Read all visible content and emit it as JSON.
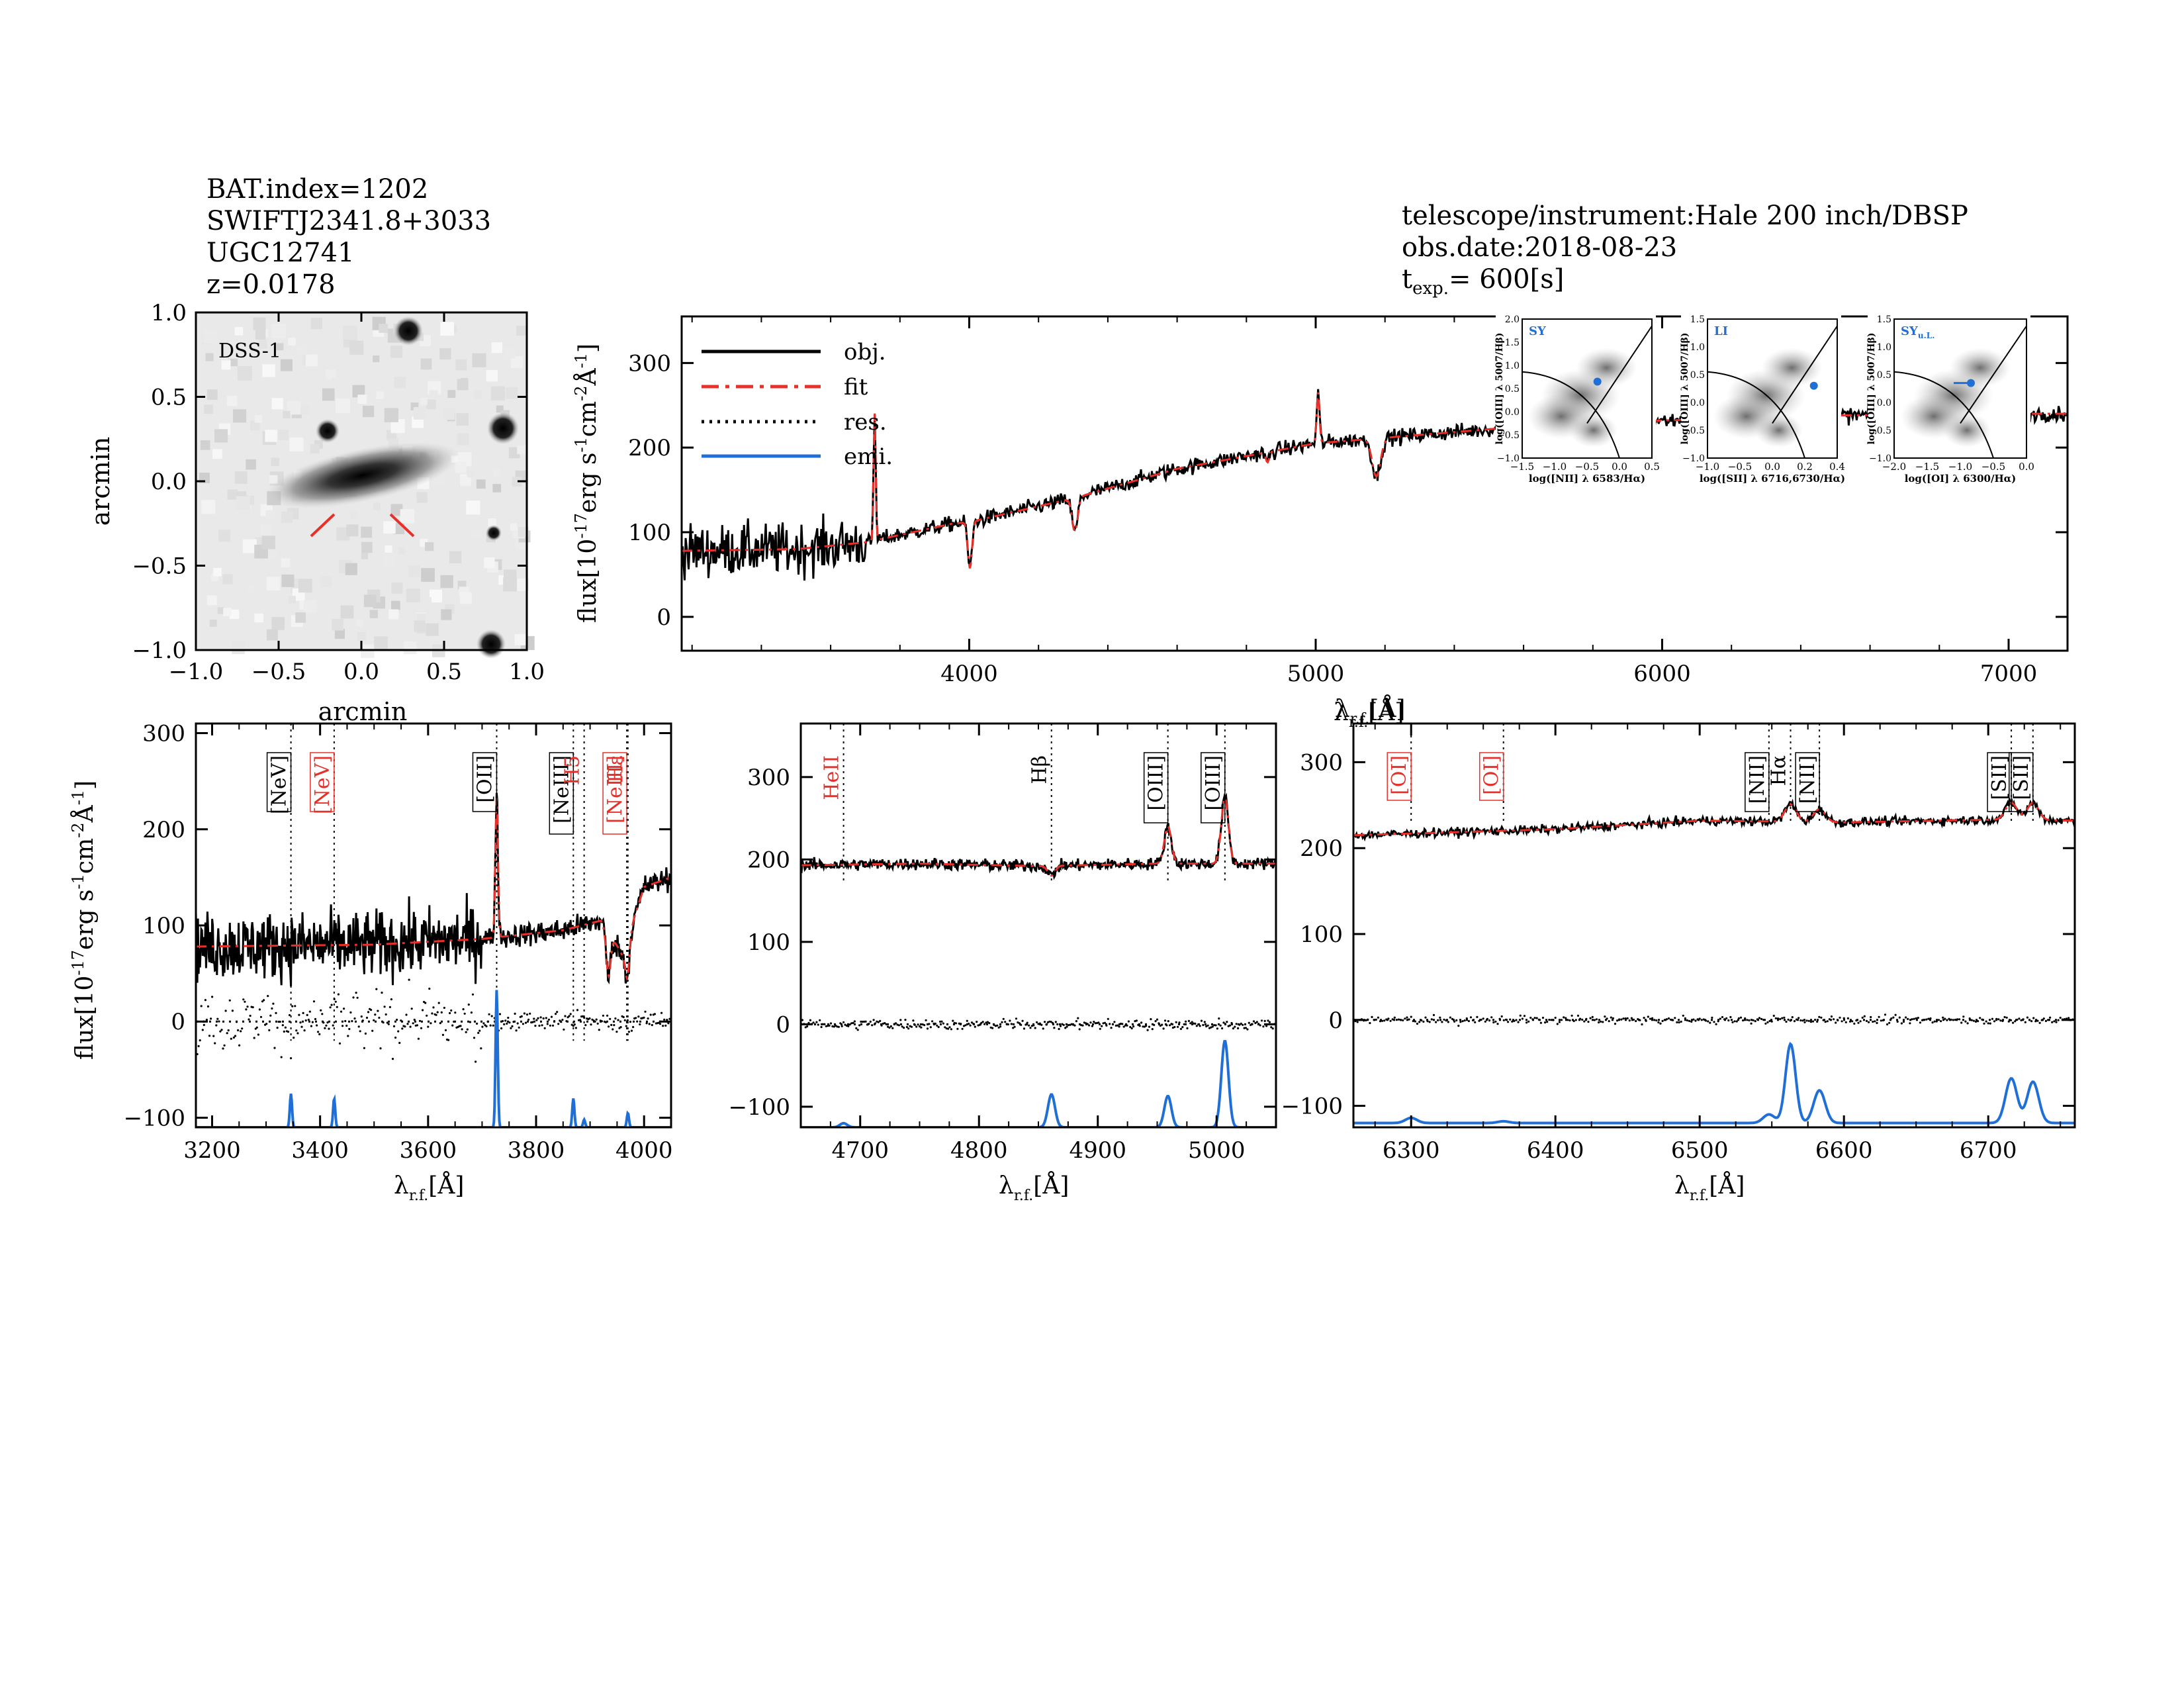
{
  "header": {
    "bat_index": "BAT.index=1202",
    "swift_name": "SWIFTJ2341.8+3033",
    "galaxy": "UGC12741",
    "redshift": "z=0.0178",
    "telescope": "telescope/instrument:Hale 200 inch/DBSP",
    "obs_date": "obs.date:2018-08-23",
    "texp_prefix": "t",
    "texp_sub": "exp.",
    "texp_value": "= 600[s]"
  },
  "image_panel": {
    "label": "DSS-1",
    "xlabel": "arcmin",
    "ylabel": "arcmin",
    "ticks": [
      "-1.0",
      "-0.5",
      "0.0",
      "0.5",
      "1.0"
    ]
  },
  "legend": {
    "obj": "obj.",
    "fit": "fit",
    "res": "res.",
    "emi": "emi."
  },
  "colors": {
    "obj": "#000000",
    "fit": "#e8302a",
    "res": "#000000",
    "emi": "#1f6fd6",
    "red_label": "#e8302a"
  },
  "bpt": [
    {
      "class": "SY",
      "xlabel": "log([NII] λ 6583/Hα)",
      "ylabel": "log([OIII] λ 5007/Hβ)",
      "xticks": [
        "-1.5",
        "-1.0",
        "-0.5",
        "0.0",
        "0.5"
      ],
      "yticks": [
        "-1.0",
        "-0.5",
        "0.0",
        "0.5",
        "1.0",
        "1.5",
        "2.0"
      ]
    },
    {
      "class": "LI",
      "xlabel": "log([SII] λ 6716,6730/Hα)",
      "ylabel": "log([OIII] λ 5007/Hβ)",
      "xticks": [
        "-1.0",
        "-0.5",
        "0.0",
        "0.2",
        "0.4"
      ],
      "yticks": [
        "-1.0",
        "-0.5",
        "0.0",
        "0.5",
        "1.0",
        "1.5"
      ]
    },
    {
      "class": "SY",
      "class_sub": "u.L.",
      "xlabel": "log([OI] λ 6300/Hα)",
      "ylabel": "log([OIII] λ 5007/Hβ)",
      "xticks": [
        "-2.0",
        "-1.5",
        "-1.0",
        "-0.5",
        "0.0"
      ],
      "yticks": [
        "-1.0",
        "-0.5",
        "0.0",
        "0.5",
        "1.0",
        "1.5"
      ]
    }
  ],
  "chart_data": [
    {
      "type": "line",
      "panel": "full",
      "ylabel": "flux[10^-17 erg s^-1 cm^-2 Å^-1]",
      "xlabel": "λr.f.[Å]",
      "xlim": [
        3170,
        7170
      ],
      "ylim": [
        -40,
        355
      ],
      "xticks": [
        4000,
        5000,
        6000,
        7000
      ],
      "yticks": [
        0,
        100,
        200,
        300
      ],
      "continuum_nodes": [
        [
          3170,
          78
        ],
        [
          3500,
          80
        ],
        [
          3700,
          88
        ],
        [
          3950,
          110
        ],
        [
          4000,
          112
        ],
        [
          4300,
          140
        ],
        [
          4600,
          175
        ],
        [
          5000,
          205
        ],
        [
          5300,
          215
        ],
        [
          5600,
          225
        ],
        [
          6000,
          232
        ],
        [
          6500,
          238
        ],
        [
          7000,
          240
        ],
        [
          7170,
          240
        ]
      ],
      "features": [
        {
          "center": 3727,
          "amp": 150,
          "sigma": 3
        },
        {
          "center": 4002,
          "amp": -55,
          "sigma": 6
        },
        {
          "center": 4305,
          "amp": -40,
          "sigma": 8
        },
        {
          "center": 4861,
          "amp": -12,
          "sigma": 5
        },
        {
          "center": 5007,
          "amp": 60,
          "sigma": 4
        },
        {
          "center": 5175,
          "amp": -45,
          "sigma": 12
        },
        {
          "center": 5892,
          "amp": -20,
          "sigma": 6
        }
      ]
    },
    {
      "type": "line",
      "panel": "zoom-1",
      "ylabel": "flux[10^-17 erg s^-1 cm^-2 Å^-1]",
      "xlabel": "λr.f.[Å]",
      "xlim": [
        3170,
        4050
      ],
      "ylim": [
        -110,
        310
      ],
      "xticks": [
        3200,
        3400,
        3600,
        3800,
        4000
      ],
      "yticks": [
        -100,
        0,
        100,
        200,
        300
      ],
      "continuum_nodes": [
        [
          3170,
          78
        ],
        [
          3500,
          80
        ],
        [
          3700,
          86
        ],
        [
          3850,
          95
        ],
        [
          3920,
          105
        ],
        [
          3960,
          70
        ],
        [
          4000,
          140
        ],
        [
          4050,
          150
        ]
      ],
      "features": [
        {
          "center": 3727,
          "amp": 145,
          "sigma": 2.5
        },
        {
          "center": 3934,
          "amp": -45,
          "sigma": 4
        },
        {
          "center": 3969,
          "amp": -40,
          "sigma": 4
        }
      ],
      "emission_lines": [
        {
          "center": 3346,
          "amp": 35,
          "sigma": 2
        },
        {
          "center": 3426,
          "amp": 30,
          "sigma": 2
        },
        {
          "center": 3727,
          "amp": 143,
          "sigma": 2
        },
        {
          "center": 3869,
          "amp": 30,
          "sigma": 2
        },
        {
          "center": 3889,
          "amp": 8,
          "sigma": 2
        },
        {
          "center": 3970,
          "amp": 15,
          "sigma": 2
        }
      ],
      "emi_baseline": -110,
      "line_marks": [
        {
          "name": "[NeV]",
          "lambda": 3346,
          "color": "#000000",
          "boxed": true
        },
        {
          "name": "[NeV]",
          "lambda": 3426,
          "color": "#e8302a",
          "boxed": true
        },
        {
          "name": "[OII]",
          "lambda": 3727,
          "color": "#000000",
          "boxed": true
        },
        {
          "name": "[NeIII]",
          "lambda": 3869,
          "color": "#000000",
          "boxed": true
        },
        {
          "name": "H5",
          "lambda": 3889,
          "color": "#e8302a",
          "boxed": false
        },
        {
          "name": "[NeIII]",
          "lambda": 3968,
          "color": "#e8302a",
          "boxed": true
        },
        {
          "name": "Hε",
          "lambda": 3970,
          "color": "#e8302a",
          "boxed": false
        }
      ]
    },
    {
      "type": "line",
      "panel": "zoom-2",
      "xlabel": "λr.f.[Å]",
      "xlim": [
        4650,
        5050
      ],
      "ylim": [
        -125,
        365
      ],
      "xticks": [
        4700,
        4800,
        4900,
        5000
      ],
      "yticks": [
        -100,
        0,
        100,
        200,
        300
      ],
      "continuum_nodes": [
        [
          4650,
          193
        ],
        [
          4750,
          195
        ],
        [
          4850,
          192
        ],
        [
          4950,
          195
        ],
        [
          5050,
          195
        ]
      ],
      "features": [
        {
          "center": 4959,
          "amp": 45,
          "sigma": 3
        },
        {
          "center": 5007,
          "amp": 80,
          "sigma": 3
        },
        {
          "center": 4861,
          "amp": -12,
          "sigma": 3
        }
      ],
      "emission_lines": [
        {
          "center": 4686,
          "amp": 5,
          "sigma": 3
        },
        {
          "center": 4861,
          "amp": 40,
          "sigma": 3
        },
        {
          "center": 4959,
          "amp": 38,
          "sigma": 3
        },
        {
          "center": 5007,
          "amp": 105,
          "sigma": 3
        }
      ],
      "emi_baseline": -125,
      "line_marks": [
        {
          "name": "HeII",
          "lambda": 4686,
          "color": "#e8302a",
          "boxed": false
        },
        {
          "name": "Hβ",
          "lambda": 4861,
          "color": "#000000",
          "boxed": false
        },
        {
          "name": "[OIII]",
          "lambda": 4959,
          "color": "#000000",
          "boxed": true
        },
        {
          "name": "[OIII]",
          "lambda": 5007,
          "color": "#000000",
          "boxed": true
        }
      ]
    },
    {
      "type": "line",
      "panel": "zoom-3",
      "xlabel": "λr.f.[Å]",
      "xlim": [
        6260,
        6760
      ],
      "ylim": [
        -125,
        345
      ],
      "xticks": [
        6300,
        6400,
        6500,
        6600,
        6700
      ],
      "yticks": [
        -100,
        0,
        100,
        200,
        300
      ],
      "continuum_nodes": [
        [
          6260,
          215
        ],
        [
          6400,
          222
        ],
        [
          6500,
          232
        ],
        [
          6600,
          230
        ],
        [
          6700,
          233
        ],
        [
          6760,
          232
        ]
      ],
      "features": [
        {
          "center": 6563,
          "amp": 20,
          "sigma": 4
        },
        {
          "center": 6583,
          "amp": 15,
          "sigma": 4
        },
        {
          "center": 6716,
          "amp": 20,
          "sigma": 4
        },
        {
          "center": 6731,
          "amp": 20,
          "sigma": 4
        }
      ],
      "emission_lines": [
        {
          "center": 6300,
          "amp": 6,
          "sigma": 4
        },
        {
          "center": 6364,
          "amp": 2,
          "sigma": 4
        },
        {
          "center": 6548,
          "amp": 10,
          "sigma": 4
        },
        {
          "center": 6563,
          "amp": 92,
          "sigma": 3.5
        },
        {
          "center": 6583,
          "amp": 38,
          "sigma": 4
        },
        {
          "center": 6716,
          "amp": 52,
          "sigma": 4
        },
        {
          "center": 6731,
          "amp": 48,
          "sigma": 4
        }
      ],
      "emi_baseline": -120,
      "line_marks": [
        {
          "name": "[OI]",
          "lambda": 6300,
          "color": "#e8302a",
          "boxed": true
        },
        {
          "name": "[OI]",
          "lambda": 6364,
          "color": "#e8302a",
          "boxed": true
        },
        {
          "name": "[NII]",
          "lambda": 6548,
          "color": "#000000",
          "boxed": true
        },
        {
          "name": "Hα",
          "lambda": 6563,
          "color": "#000000",
          "boxed": false
        },
        {
          "name": "[NII]",
          "lambda": 6583,
          "color": "#000000",
          "boxed": true
        },
        {
          "name": "[SII]",
          "lambda": 6716,
          "color": "#000000",
          "boxed": true
        },
        {
          "name": "[SII]",
          "lambda": 6731,
          "color": "#000000",
          "boxed": true
        }
      ]
    }
  ]
}
